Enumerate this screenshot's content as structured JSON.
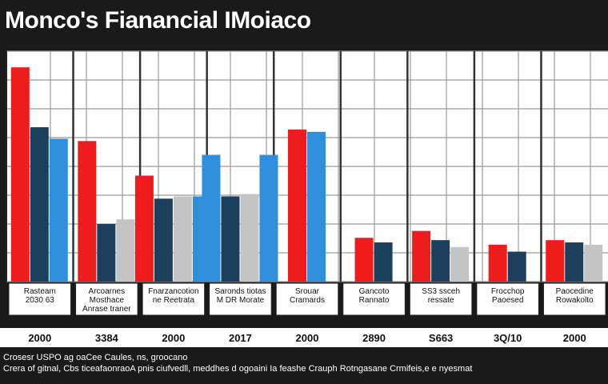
{
  "title": "Monco's Fianancial IMoiaco",
  "colors": {
    "background": "#1a1a1a",
    "plot": "#ffffff",
    "grid": "#9a9a9a",
    "label_band": "#ffffff",
    "series": [
      "#ee1c1c",
      "#1b3f5c",
      "#2f8fdc",
      "#c4c4c4"
    ]
  },
  "chart_data": {
    "type": "bar",
    "groups": [
      {
        "label": [
          "Rasteam",
          "2030 63"
        ],
        "year": "2000",
        "bars": [
          {
            "series": 0,
            "value": 93
          },
          {
            "series": 1,
            "value": 67
          },
          {
            "series": 2,
            "value": 62
          }
        ]
      },
      {
        "label": [
          "Arcoarnes",
          "Mosthace",
          "Anrase traner"
        ],
        "year": "3384",
        "bars": [
          {
            "series": 0,
            "value": 61
          },
          {
            "series": 1,
            "value": 25
          },
          {
            "series": 3,
            "value": 27
          }
        ]
      },
      {
        "label": [
          "Fnarzancotion",
          "ne Reetrata"
        ],
        "year": "2000",
        "bars": [
          {
            "series": 0,
            "value": 46
          },
          {
            "series": 1,
            "value": 36
          },
          {
            "series": 3,
            "value": 37
          },
          {
            "series": 2,
            "value": 37
          }
        ]
      },
      {
        "label": [
          "Saronds tiotas",
          "M DR Morate"
        ],
        "year": "2017",
        "bars": [
          {
            "series": 2,
            "value": 55
          },
          {
            "series": 1,
            "value": 37
          },
          {
            "series": 3,
            "value": 38
          },
          {
            "series": 2,
            "value": 55
          }
        ]
      },
      {
        "label": [
          "Srouar",
          "Cramards"
        ],
        "year": "2000",
        "bars": [
          {
            "series": 0,
            "value": 66
          },
          {
            "series": 2,
            "value": 65
          }
        ]
      },
      {
        "label": [
          "Gancoto",
          "Rannato"
        ],
        "year": "2890",
        "bars": [
          {
            "series": 0,
            "value": 19
          },
          {
            "series": 1,
            "value": 17
          }
        ]
      },
      {
        "label": [
          "SS3 ssceh",
          "ressate"
        ],
        "year": "S663",
        "bars": [
          {
            "series": 0,
            "value": 22
          },
          {
            "series": 1,
            "value": 18
          },
          {
            "series": 3,
            "value": 15
          }
        ]
      },
      {
        "label": [
          "Frocchop",
          "Paoesed"
        ],
        "year": "3Q/10",
        "bars": [
          {
            "series": 0,
            "value": 16
          },
          {
            "series": 1,
            "value": 13
          }
        ]
      },
      {
        "label": [
          "Paocedine",
          "Rowakolto"
        ],
        "year": "2000",
        "bars": [
          {
            "series": 0,
            "value": 18
          },
          {
            "series": 1,
            "value": 17
          },
          {
            "series": 3,
            "value": 16
          }
        ]
      }
    ],
    "ylim": [
      0,
      100
    ],
    "grid": true,
    "legend": "none"
  },
  "footnotes": [
    "Crosesr USPO ag oaCee Caules, ns, groocano",
    "Crera of gitnal, Cbs ticeafaonraoA pnis ciufvedll, meddhes d ogoaini Ia feashe Crauph Rotngasane Crmifeis,e e nyesmat"
  ]
}
